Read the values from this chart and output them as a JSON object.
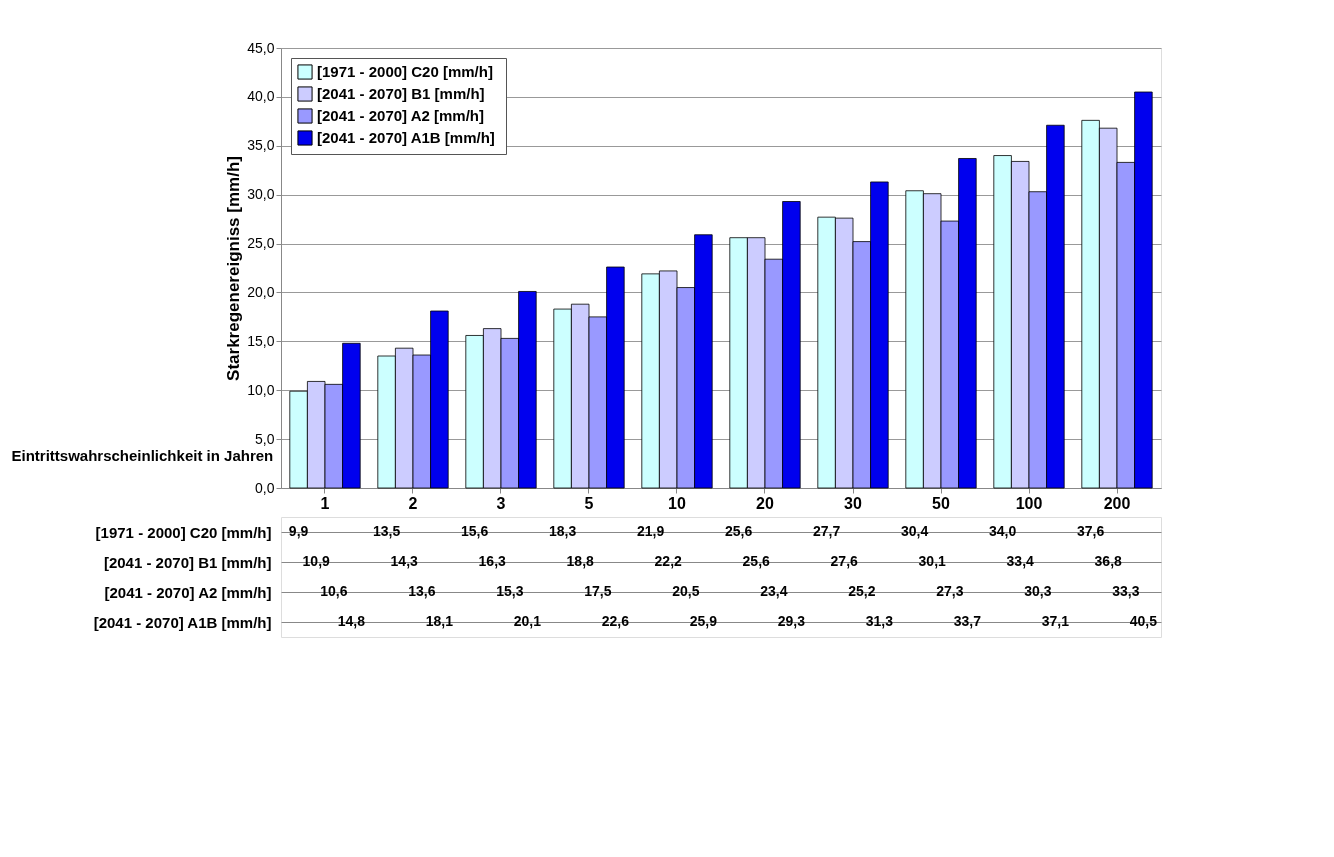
{
  "chart_data": {
    "type": "bar",
    "categories": [
      "1",
      "2",
      "3",
      "5",
      "10",
      "20",
      "30",
      "50",
      "100",
      "200"
    ],
    "xlabel": "Eintrittswahrscheinlichkeit in Jahren",
    "ylabel": "Starkregenereigniss [mm/h]",
    "series": [
      {
        "name": "[1971 - 2000] C20 [mm/h]",
        "color": "#ccffff",
        "values": [
          9.9,
          13.5,
          15.6,
          18.3,
          21.9,
          25.6,
          27.7,
          30.4,
          34.0,
          37.6
        ],
        "value_labels": [
          "9,9",
          "13,5",
          "15,6",
          "18,3",
          "21,9",
          "25,6",
          "27,7",
          "30,4",
          "34,0",
          "37,6"
        ]
      },
      {
        "name": "[2041 - 2070] B1  [mm/h]",
        "color": "#ccccff",
        "values": [
          10.9,
          14.3,
          16.3,
          18.8,
          22.2,
          25.6,
          27.6,
          30.1,
          33.4,
          36.8
        ],
        "value_labels": [
          "10,9",
          "14,3",
          "16,3",
          "18,8",
          "22,2",
          "25,6",
          "27,6",
          "30,1",
          "33,4",
          "36,8"
        ]
      },
      {
        "name": "[2041 - 2070] A2  [mm/h]",
        "color": "#9999ff",
        "values": [
          10.6,
          13.6,
          15.3,
          17.5,
          20.5,
          23.4,
          25.2,
          27.3,
          30.3,
          33.3
        ],
        "value_labels": [
          "10,6",
          "13,6",
          "15,3",
          "17,5",
          "20,5",
          "23,4",
          "25,2",
          "27,3",
          "30,3",
          "33,3"
        ]
      },
      {
        "name": "[2041 - 2070] A1B  [mm/h]",
        "color": "#0000ee",
        "values": [
          14.8,
          18.1,
          20.1,
          22.6,
          25.9,
          29.3,
          31.3,
          33.7,
          37.1,
          40.5
        ],
        "value_labels": [
          "14,8",
          "18,1",
          "20,1",
          "22,6",
          "25,9",
          "29,3",
          "31,3",
          "33,7",
          "37,1",
          "40,5"
        ]
      }
    ],
    "ylim": [
      0,
      45
    ],
    "yticks": [
      {
        "value": 0,
        "label": "0,0"
      },
      {
        "value": 5,
        "label": "5,0"
      },
      {
        "value": 10,
        "label": "10,0"
      },
      {
        "value": 15,
        "label": "15,0"
      },
      {
        "value": 20,
        "label": "20,0"
      },
      {
        "value": 25,
        "label": "25,0"
      },
      {
        "value": 30,
        "label": "30,0"
      },
      {
        "value": 35,
        "label": "35,0"
      },
      {
        "value": 40,
        "label": "40,0"
      },
      {
        "value": 45,
        "label": "45,0"
      }
    ],
    "grid": "y",
    "legend": "top left"
  }
}
